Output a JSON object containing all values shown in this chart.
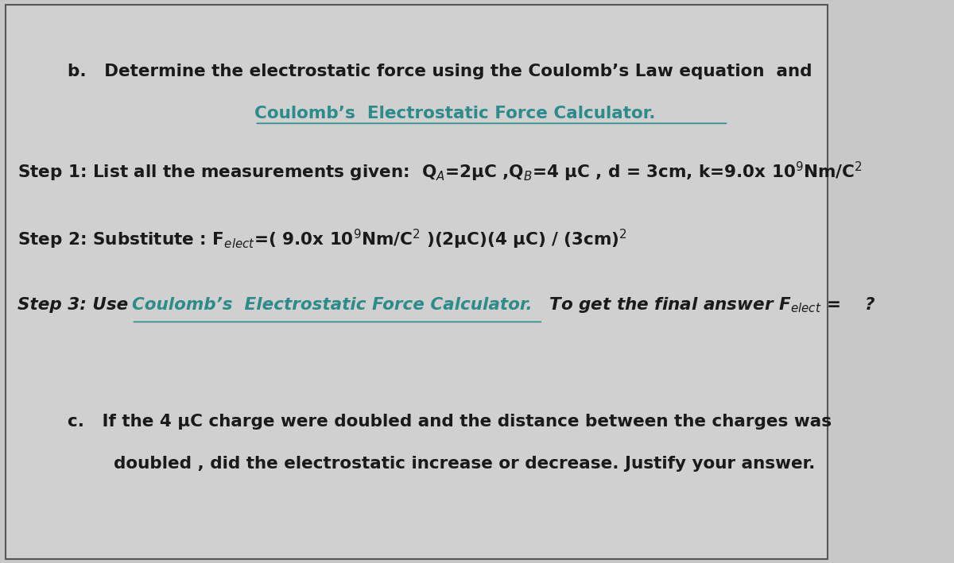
{
  "bg_color": "#c8c8c8",
  "panel_color": "#d0d0d0",
  "border_color": "#555555",
  "text_color_black": "#1a1a1a",
  "text_color_teal": "#2e8b8b",
  "figsize": [
    12.0,
    7.09
  ],
  "dpi": 100,
  "line_b_part1": "b.   Determine the electrostatic force using the Coulomb’s Law equation  and",
  "line_b_part2": "Coulomb’s  Electrostatic Force Calculator.",
  "step1_text": "Step 1: List all the measurements given:  Q$_A$=2μC ,Q$_B$=4 μC , d = 3cm, k=9.0x 10$^9$Nm/C$^2$",
  "step2_text": "Step 2: Substitute : F$_{elect}$=( 9.0x 10$^9$Nm/C$^2$ )(2μC)(4 μC) / (3cm)$^2$",
  "step3_prefix": "Step 3: Use ",
  "step3_link": "Coulomb’s  Electrostatic Force Calculator.",
  "step3_suffix": " To get the final answer F$_{elect}$ =    ?",
  "line_c_part1": "c.   If the 4 μC charge were doubled and the distance between the charges was",
  "line_c_part2": "doubled , did the electrostatic increase or decrease. Justify your answer."
}
